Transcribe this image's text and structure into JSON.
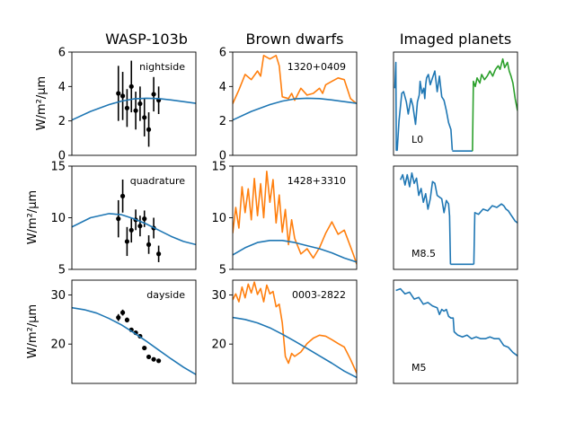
{
  "figure": {
    "column_titles": [
      "WASP-103b",
      "Brown dwarfs",
      "Imaged planets"
    ],
    "ylabel": "W/m²/μm"
  },
  "chart_data": [
    {
      "type": "scatter",
      "row": 0,
      "col": 0,
      "label": "nightside",
      "ylim": [
        0,
        6
      ],
      "yticks": [
        "0",
        "2",
        "4",
        "6"
      ],
      "series": [
        {
          "kind": "errorbar",
          "color": "#000000",
          "x": [
            0.95,
            1.02,
            1.09,
            1.16,
            1.23,
            1.3,
            1.37,
            1.44,
            1.52,
            1.6
          ],
          "y": [
            3.6,
            3.45,
            2.75,
            4.0,
            2.6,
            3.0,
            2.2,
            1.5,
            3.55,
            3.2
          ],
          "yerr": [
            1.6,
            1.4,
            1.1,
            1.5,
            1.1,
            1.0,
            1.1,
            1.0,
            1.0,
            0.8
          ]
        },
        {
          "kind": "line",
          "color": "#1f77b4",
          "x": [
            0.2,
            0.5,
            0.8,
            1.0,
            1.2,
            1.4,
            1.6,
            1.8,
            2.0,
            2.2
          ],
          "y": [
            2.05,
            2.55,
            2.95,
            3.15,
            3.28,
            3.32,
            3.3,
            3.22,
            3.12,
            3.02
          ]
        }
      ]
    },
    {
      "type": "line",
      "row": 0,
      "col": 1,
      "label": "1320+0409",
      "ylim": [
        0,
        6
      ],
      "yticks": [
        "0",
        "2",
        "4",
        "6"
      ],
      "series": [
        {
          "kind": "line",
          "color": "#ff7f0e",
          "x": [
            0.2,
            0.3,
            0.4,
            0.5,
            0.6,
            0.65,
            0.7,
            0.8,
            0.9,
            0.95,
            1.0,
            1.1,
            1.15,
            1.2,
            1.3,
            1.4,
            1.5,
            1.6,
            1.65,
            1.7,
            1.8,
            1.9,
            2.0,
            2.1,
            2.2
          ],
          "y": [
            3.0,
            3.8,
            4.7,
            4.4,
            4.9,
            4.6,
            5.8,
            5.6,
            5.8,
            5.2,
            3.4,
            3.3,
            3.6,
            3.2,
            3.9,
            3.5,
            3.6,
            3.9,
            3.6,
            4.1,
            4.3,
            4.5,
            4.4,
            3.3,
            3.0
          ]
        },
        {
          "kind": "line",
          "color": "#1f77b4",
          "x": [
            0.2,
            0.5,
            0.8,
            1.0,
            1.2,
            1.4,
            1.6,
            1.8,
            2.0,
            2.2
          ],
          "y": [
            2.05,
            2.55,
            2.95,
            3.15,
            3.28,
            3.32,
            3.3,
            3.22,
            3.12,
            3.02
          ]
        }
      ]
    },
    {
      "type": "line",
      "row": 0,
      "col": 2,
      "label": "L0",
      "ylim": [
        0,
        6
      ],
      "yticks": [],
      "series": [
        {
          "kind": "line",
          "color": "#1f77b4",
          "x": [
            0.33,
            0.35,
            0.36,
            0.38,
            0.42,
            0.48,
            0.52,
            0.58,
            0.62,
            0.68,
            0.72,
            0.78,
            0.82,
            0.86,
            0.88,
            0.92,
            0.96,
            0.98,
            1.0,
            1.02,
            1.06,
            1.1,
            1.15,
            1.2,
            1.25,
            1.3,
            1.35,
            1.4,
            1.45,
            1.5,
            1.55,
            1.58
          ],
          "y": [
            3.9,
            5.4,
            0.3,
            0.3,
            2.0,
            3.6,
            3.7,
            3.1,
            2.4,
            3.3,
            2.9,
            1.8,
            3.1,
            3.5,
            4.3,
            3.6,
            3.9,
            3.3,
            4.1,
            4.5,
            4.7,
            4.1,
            4.5,
            4.9,
            3.7,
            4.6,
            3.4,
            3.2,
            2.6,
            1.9,
            1.5,
            0.3
          ]
        },
        {
          "kind": "line",
          "color": "#1f77b4",
          "x": [
            1.58,
            2.02
          ],
          "y": [
            0.25,
            0.25
          ]
        },
        {
          "kind": "line",
          "color": "#2ca02c",
          "x": [
            2.02,
            2.04,
            2.08,
            2.12,
            2.18,
            2.22,
            2.28,
            2.34,
            2.4,
            2.46,
            2.52,
            2.58,
            2.62,
            2.68,
            2.72,
            2.78,
            2.82,
            2.86,
            2.9,
            2.95,
            3.0
          ],
          "y": [
            0.25,
            4.3,
            4.0,
            4.5,
            4.2,
            4.7,
            4.4,
            4.6,
            4.9,
            4.6,
            5.0,
            5.2,
            5.0,
            5.6,
            5.1,
            5.4,
            4.9,
            4.6,
            4.2,
            3.3,
            2.6
          ]
        }
      ]
    },
    {
      "type": "scatter",
      "row": 1,
      "col": 0,
      "label": "quadrature",
      "ylim": [
        5,
        15
      ],
      "yticks": [
        "5",
        "10",
        "15"
      ],
      "series": [
        {
          "kind": "errorbar",
          "color": "#000000",
          "x": [
            0.95,
            1.02,
            1.09,
            1.16,
            1.23,
            1.3,
            1.37,
            1.44,
            1.52,
            1.6
          ],
          "y": [
            9.9,
            12.1,
            7.7,
            8.8,
            9.8,
            9.2,
            9.9,
            7.4,
            9.0,
            6.5
          ],
          "yerr": [
            1.8,
            1.6,
            1.4,
            1.2,
            1.0,
            1.0,
            0.8,
            0.9,
            1.0,
            0.8
          ]
        },
        {
          "kind": "line",
          "color": "#1f77b4",
          "x": [
            0.2,
            0.5,
            0.8,
            1.0,
            1.2,
            1.4,
            1.6,
            1.8,
            2.0,
            2.2
          ],
          "y": [
            9.1,
            10.0,
            10.4,
            10.3,
            9.9,
            9.4,
            8.8,
            8.2,
            7.7,
            7.4
          ]
        }
      ]
    },
    {
      "type": "line",
      "row": 1,
      "col": 1,
      "label": "1428+3310",
      "ylim": [
        5,
        15
      ],
      "yticks": [
        "5",
        "10",
        "15"
      ],
      "series": [
        {
          "kind": "line",
          "color": "#ff7f0e",
          "x": [
            0.2,
            0.25,
            0.3,
            0.35,
            0.4,
            0.45,
            0.5,
            0.55,
            0.6,
            0.65,
            0.7,
            0.75,
            0.8,
            0.85,
            0.9,
            0.95,
            1.0,
            1.05,
            1.1,
            1.15,
            1.2,
            1.3,
            1.4,
            1.5,
            1.6,
            1.7,
            1.8,
            1.9,
            2.0,
            2.1,
            2.15,
            2.2
          ],
          "y": [
            8.5,
            11.0,
            9.0,
            13.0,
            10.5,
            12.8,
            9.8,
            13.8,
            10.2,
            13.3,
            10.0,
            14.5,
            11.5,
            13.7,
            9.5,
            12.2,
            8.6,
            10.8,
            7.4,
            9.8,
            8.0,
            6.5,
            7.0,
            6.1,
            7.1,
            8.5,
            9.6,
            8.4,
            8.8,
            7.2,
            6.4,
            5.5
          ]
        },
        {
          "kind": "line",
          "color": "#1f77b4",
          "x": [
            0.2,
            0.4,
            0.6,
            0.8,
            1.0,
            1.2,
            1.4,
            1.6,
            1.8,
            2.0,
            2.2
          ],
          "y": [
            6.4,
            7.1,
            7.6,
            7.8,
            7.8,
            7.6,
            7.3,
            7.0,
            6.6,
            6.1,
            5.7
          ]
        }
      ]
    },
    {
      "type": "line",
      "row": 1,
      "col": 2,
      "label": "M8.5",
      "ylim": [
        0,
        6
      ],
      "yticks": [],
      "series": [
        {
          "kind": "line",
          "color": "#1f77b4",
          "x": [
            0.45,
            0.5,
            0.55,
            0.6,
            0.65,
            0.7,
            0.75,
            0.8,
            0.85,
            0.9,
            0.95,
            1.0,
            1.05,
            1.1,
            1.15,
            1.2,
            1.25,
            1.3,
            1.35,
            1.4,
            1.45,
            1.5,
            1.52,
            1.54
          ],
          "y": [
            5.2,
            5.5,
            4.9,
            5.5,
            4.8,
            5.6,
            5.0,
            5.3,
            4.3,
            4.7,
            3.9,
            4.4,
            3.5,
            4.1,
            5.1,
            5.0,
            4.3,
            4.2,
            4.1,
            3.3,
            4.0,
            3.8,
            3.1,
            0.3
          ]
        },
        {
          "kind": "line",
          "color": "#1f77b4",
          "x": [
            1.54,
            2.05
          ],
          "y": [
            0.3,
            0.3
          ]
        },
        {
          "kind": "line",
          "color": "#1f77b4",
          "x": [
            2.05,
            2.07,
            2.15,
            2.25,
            2.35,
            2.45,
            2.55,
            2.65,
            2.7,
            2.75,
            2.8,
            2.85,
            2.9,
            2.95,
            3.0
          ],
          "y": [
            0.3,
            3.3,
            3.2,
            3.5,
            3.4,
            3.7,
            3.6,
            3.8,
            3.7,
            3.5,
            3.4,
            3.2,
            3.0,
            2.8,
            2.7
          ]
        }
      ]
    },
    {
      "type": "scatter",
      "row": 2,
      "col": 0,
      "label": "dayside",
      "ylim": [
        12,
        33
      ],
      "yticks": [
        "20",
        "30"
      ],
      "series": [
        {
          "kind": "errorbar",
          "color": "#000000",
          "x": [
            0.95,
            1.02,
            1.09,
            1.16,
            1.23,
            1.3,
            1.37,
            1.44,
            1.52,
            1.6
          ],
          "y": [
            25.4,
            26.4,
            24.9,
            22.9,
            22.3,
            21.6,
            19.2,
            17.4,
            16.9,
            16.6
          ],
          "yerr": [
            0.7,
            0.6,
            0.5,
            0.4,
            0.4,
            0.4,
            0.3,
            0.3,
            0.3,
            0.3
          ]
        },
        {
          "kind": "line",
          "color": "#1f77b4",
          "x": [
            0.2,
            0.4,
            0.6,
            0.8,
            1.0,
            1.2,
            1.4,
            1.6,
            1.8,
            2.0,
            2.2
          ],
          "y": [
            27.4,
            27.0,
            26.3,
            25.2,
            23.9,
            22.3,
            20.6,
            18.8,
            17.0,
            15.3,
            13.8
          ]
        }
      ]
    },
    {
      "type": "line",
      "row": 2,
      "col": 1,
      "label": "0003-2822",
      "ylim": [
        12,
        33
      ],
      "yticks": [
        "20",
        "30"
      ],
      "series": [
        {
          "kind": "line",
          "color": "#ff7f0e",
          "x": [
            0.2,
            0.25,
            0.3,
            0.35,
            0.4,
            0.45,
            0.5,
            0.55,
            0.6,
            0.65,
            0.7,
            0.75,
            0.8,
            0.85,
            0.9,
            0.95,
            1.0,
            1.05,
            1.1,
            1.15,
            1.2,
            1.3,
            1.4,
            1.5,
            1.6,
            1.7,
            1.8,
            1.9,
            2.0,
            2.1,
            2.2
          ],
          "y": [
            29.0,
            30.2,
            28.6,
            31.6,
            29.4,
            32.2,
            30.4,
            32.6,
            30.1,
            31.3,
            28.6,
            32.0,
            30.2,
            30.7,
            27.6,
            28.1,
            24.3,
            17.5,
            16.1,
            18.1,
            17.5,
            18.4,
            20.1,
            21.2,
            21.8,
            21.6,
            20.9,
            20.1,
            19.4,
            16.9,
            14.1
          ]
        },
        {
          "kind": "line",
          "color": "#1f77b4",
          "x": [
            0.2,
            0.4,
            0.6,
            0.8,
            1.0,
            1.2,
            1.4,
            1.6,
            1.8,
            2.0,
            2.2
          ],
          "y": [
            25.4,
            25.0,
            24.3,
            23.3,
            22.0,
            20.6,
            19.1,
            17.6,
            16.1,
            14.5,
            13.2
          ]
        }
      ]
    },
    {
      "type": "line",
      "row": 2,
      "col": 2,
      "label": "M5",
      "ylim": [
        0,
        6
      ],
      "yticks": [],
      "series": [
        {
          "kind": "line",
          "color": "#1f77b4",
          "x": [
            0.35,
            0.45,
            0.55,
            0.65,
            0.75,
            0.85,
            0.95,
            1.05,
            1.15,
            1.25,
            1.3,
            1.35,
            1.4,
            1.45,
            1.5,
            1.55,
            1.6,
            1.62,
            1.7,
            1.8,
            1.9,
            2.0,
            2.1,
            2.2,
            2.3,
            2.4,
            2.5,
            2.6,
            2.7,
            2.8,
            2.9,
            3.0
          ],
          "y": [
            5.4,
            5.5,
            5.2,
            5.3,
            4.9,
            5.0,
            4.6,
            4.7,
            4.5,
            4.4,
            4.0,
            4.3,
            4.2,
            4.3,
            3.9,
            3.8,
            3.8,
            3.0,
            2.8,
            2.7,
            2.8,
            2.6,
            2.7,
            2.6,
            2.6,
            2.7,
            2.6,
            2.6,
            2.2,
            2.1,
            1.8,
            1.6
          ]
        }
      ]
    }
  ]
}
